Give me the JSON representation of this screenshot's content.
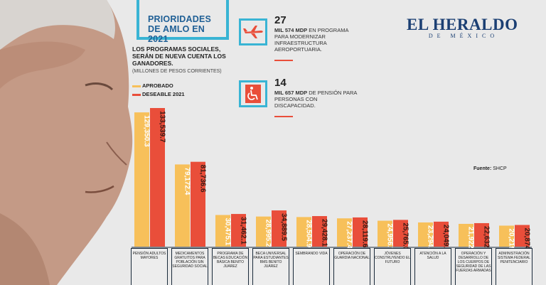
{
  "header": {
    "title_line1": "PRIORIDADES",
    "title_line2": "DE AMLO EN 2021",
    "subtitle": "LOS PROGRAMAS SOCIALES, SERÁN DE NUEVA CUENTA LOS GANADORES.",
    "units_note": "(MILLONES DE PESOS CORRIENTES)"
  },
  "legend": [
    {
      "label": "APROBADO",
      "color": "#f7c05a"
    },
    {
      "label": "DESEABLE 2021",
      "color": "#e94e3a"
    }
  ],
  "stats": [
    {
      "icon": "airplane-icon",
      "number": "27",
      "text_bold": "MIL 574 MDP",
      "text": "EN PROGRAMA PARA MODERNIZAR INFRAESTRUCTURA AEROPORTUARIA."
    },
    {
      "icon": "wheelchair-icon",
      "number": "14",
      "text_bold": "MIL 657 MDP",
      "text": "DE PENSIÓN PARA PERSONAS CON DISCAPACIDAD."
    }
  ],
  "brand": {
    "name": "EL HERALDO",
    "sub": "DE MÉXICO"
  },
  "source": {
    "label": "Fuente:",
    "value": "SHCP"
  },
  "colors": {
    "aprobado": "#f7c05a",
    "deseable": "#e94e3a",
    "accent": "#39b4d4",
    "title": "#1f5f95"
  },
  "chart_data": {
    "type": "bar",
    "categories": [
      "PENSIÓN ADULTOS MAYORES",
      "MEDICAMENTOS GRATUITOS PARA POBLACIÓN SIN SEGURIDAD SOCIAL",
      "PROGRAMA DE BECAS EDUCACIÓN BÁSICA BENITO JUÁREZ",
      "BECA UNIVERSAL PARA ESTUDIANTES BMS BENITO JUÁREZ",
      "SEMBRANDO VIDA",
      "OPERACIÓN DE GUARDIA NACIONAL",
      "JÓVENES CONSTRUYENDO EL FUTURO",
      "ATENCIÓN A LA SALUD",
      "OPERACIÓN Y DESARROLLO DE LOS CUERPOS DE SEGURIDAD DE LAS FUERZAS ARMADAS",
      "ADMINISTRACIÓN SISTEMA FEDERAL PENITENCIARIO"
    ],
    "series": [
      {
        "name": "APROBADO",
        "values": [
          129350.3,
          79172.4,
          30475.1,
          28995.2,
          28504.9,
          27237.4,
          24956.7,
          23294.8,
          21922.2,
          20219.2
        ],
        "labels": [
          "129,350.3",
          "79,172.4",
          "30,475.1",
          "28,995.2",
          "28,504.9",
          "27,237.4",
          "24,956.7",
          "23,294.8",
          "21,922.2",
          "20,219.2"
        ]
      },
      {
        "name": "DESEABLE 2021",
        "values": [
          133539.7,
          81736.6,
          31462.1,
          34889.5,
          29428.1,
          28119.6,
          25765.0,
          24049.2,
          22632.2,
          20874.0
        ],
        "labels": [
          "133,539.7",
          "81,736.6",
          "31,462.1",
          "34,889.5",
          "29,428.1",
          "28,119.6",
          "25,765.0",
          "24,049.2",
          "22,632.2",
          "20,874.0"
        ]
      }
    ]
  }
}
